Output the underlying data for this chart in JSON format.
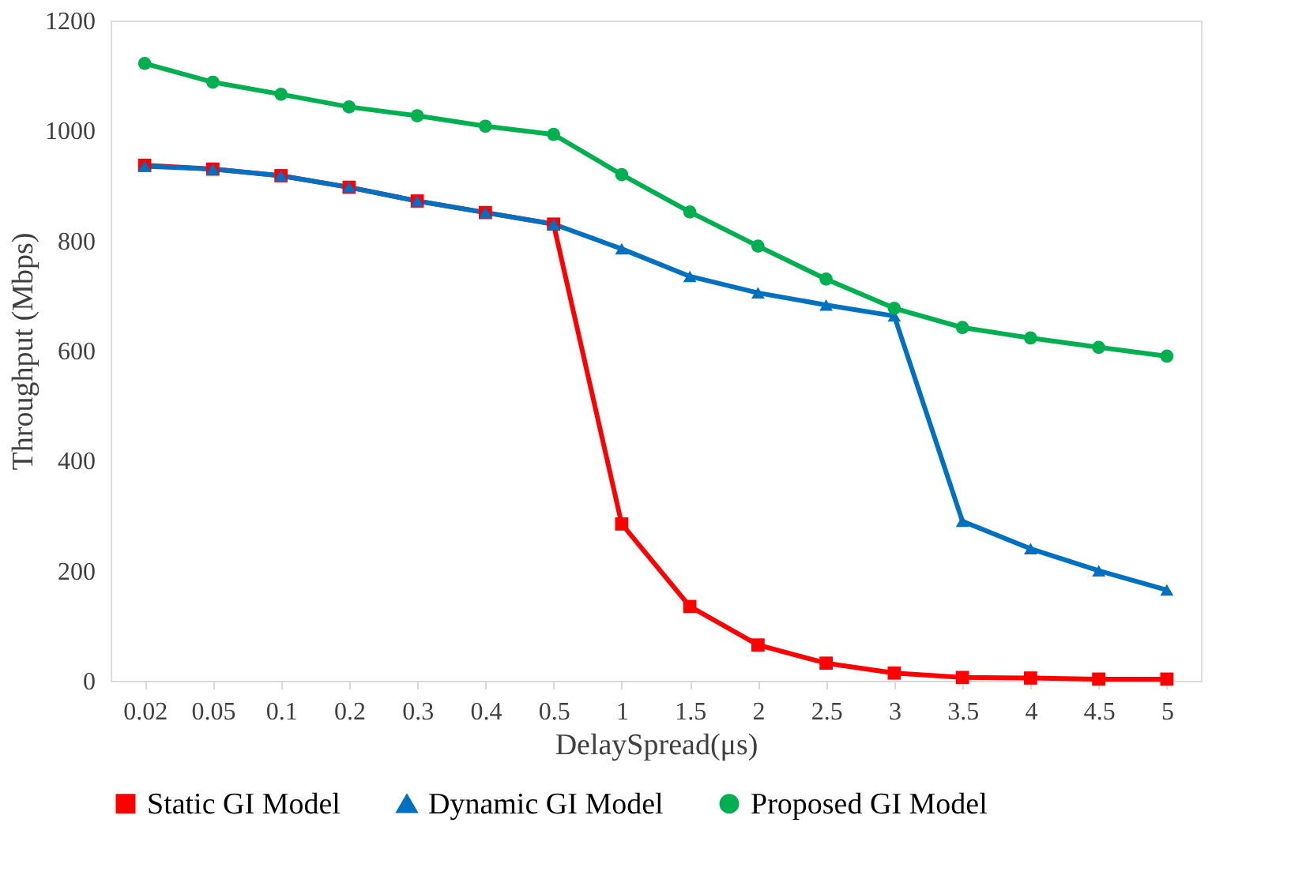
{
  "chart_data": {
    "type": "line",
    "xlabel": "DelaySpread(μs)",
    "ylabel": "Throughput (Mbps)",
    "categories": [
      "0.02",
      "0.05",
      "0.1",
      "0.2",
      "0.3",
      "0.4",
      "0.5",
      "1",
      "1.5",
      "2",
      "2.5",
      "3",
      "3.5",
      "4",
      "4.5",
      "5"
    ],
    "series": [
      {
        "name": "Static GI Model",
        "color": "#ff0000",
        "marker": "square",
        "values": [
          937,
          930,
          918,
          897,
          872,
          851,
          830,
          285,
          135,
          65,
          32,
          14,
          6,
          5,
          3,
          3
        ]
      },
      {
        "name": "Dynamic GI Model",
        "color": "#0070c0",
        "marker": "triangle",
        "values": [
          935,
          930,
          918,
          897,
          872,
          851,
          830,
          785,
          735,
          705,
          683,
          663,
          290,
          240,
          200,
          165
        ]
      },
      {
        "name": "Proposed GI Model",
        "color": "#00b050",
        "marker": "circle",
        "values": [
          1122,
          1088,
          1066,
          1043,
          1027,
          1008,
          993,
          920,
          852,
          790,
          730,
          677,
          642,
          623,
          606,
          590
        ]
      }
    ],
    "ylim": [
      0,
      1200
    ],
    "yticks": [
      0,
      200,
      400,
      600,
      800,
      1000,
      1200
    ],
    "grid": false,
    "legend": "bottom",
    "line_style": "solid"
  }
}
